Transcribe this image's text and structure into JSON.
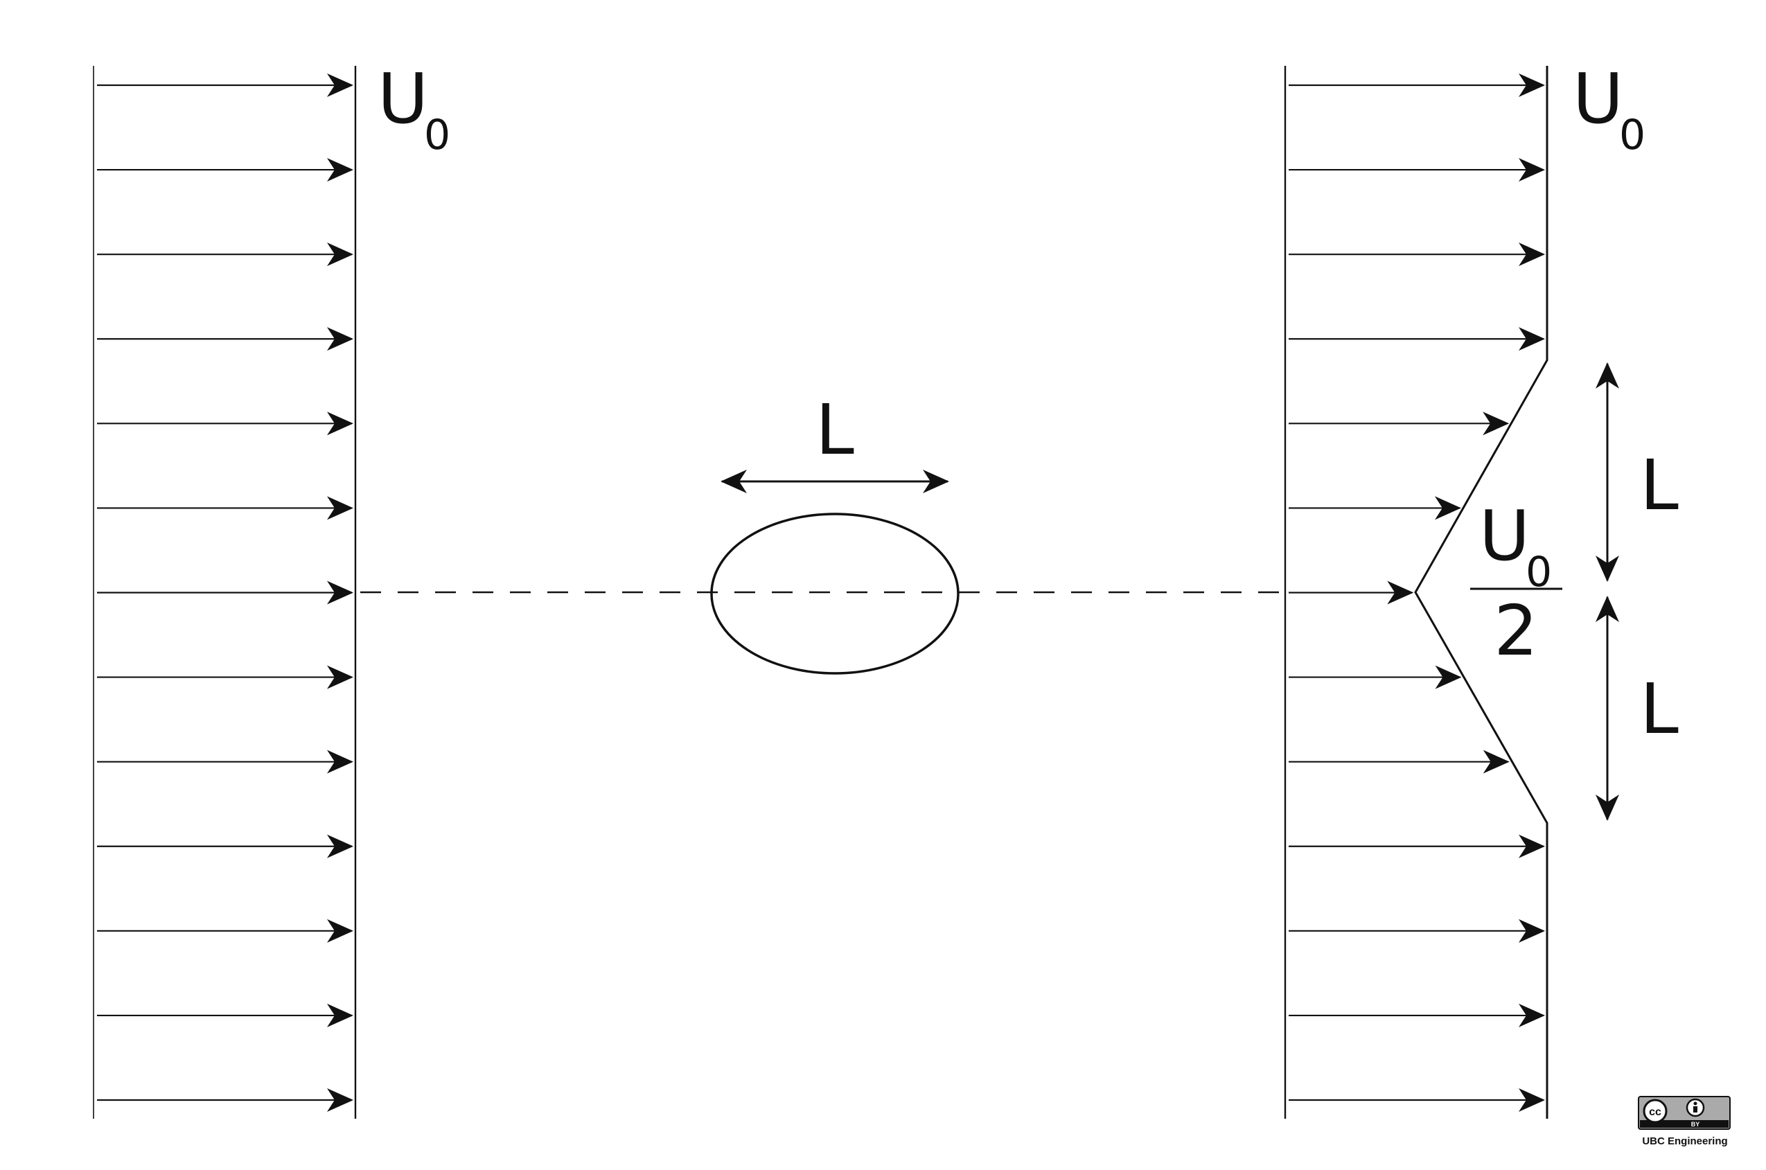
{
  "inlet_profile": {
    "velocity_label": "U",
    "velocity_subscript": "0",
    "arrow_count": 13
  },
  "body": {
    "length_label": "L",
    "shape": "ellipse"
  },
  "wake_profile": {
    "velocity_label": "U",
    "velocity_subscript": "0",
    "deficit_numerator": "U",
    "deficit_numerator_subscript": "0",
    "deficit_denominator": "2",
    "deficit_fraction": 0.5,
    "upper_half_width_label": "L",
    "lower_half_width_label": "L",
    "arrow_count": 13
  },
  "license_badge": {
    "cc_text": "cc",
    "by_text": "BY",
    "credit": "UBC Engineering"
  },
  "colors": {
    "ink": "#111111",
    "badge_gray": "#aaaaaa"
  }
}
